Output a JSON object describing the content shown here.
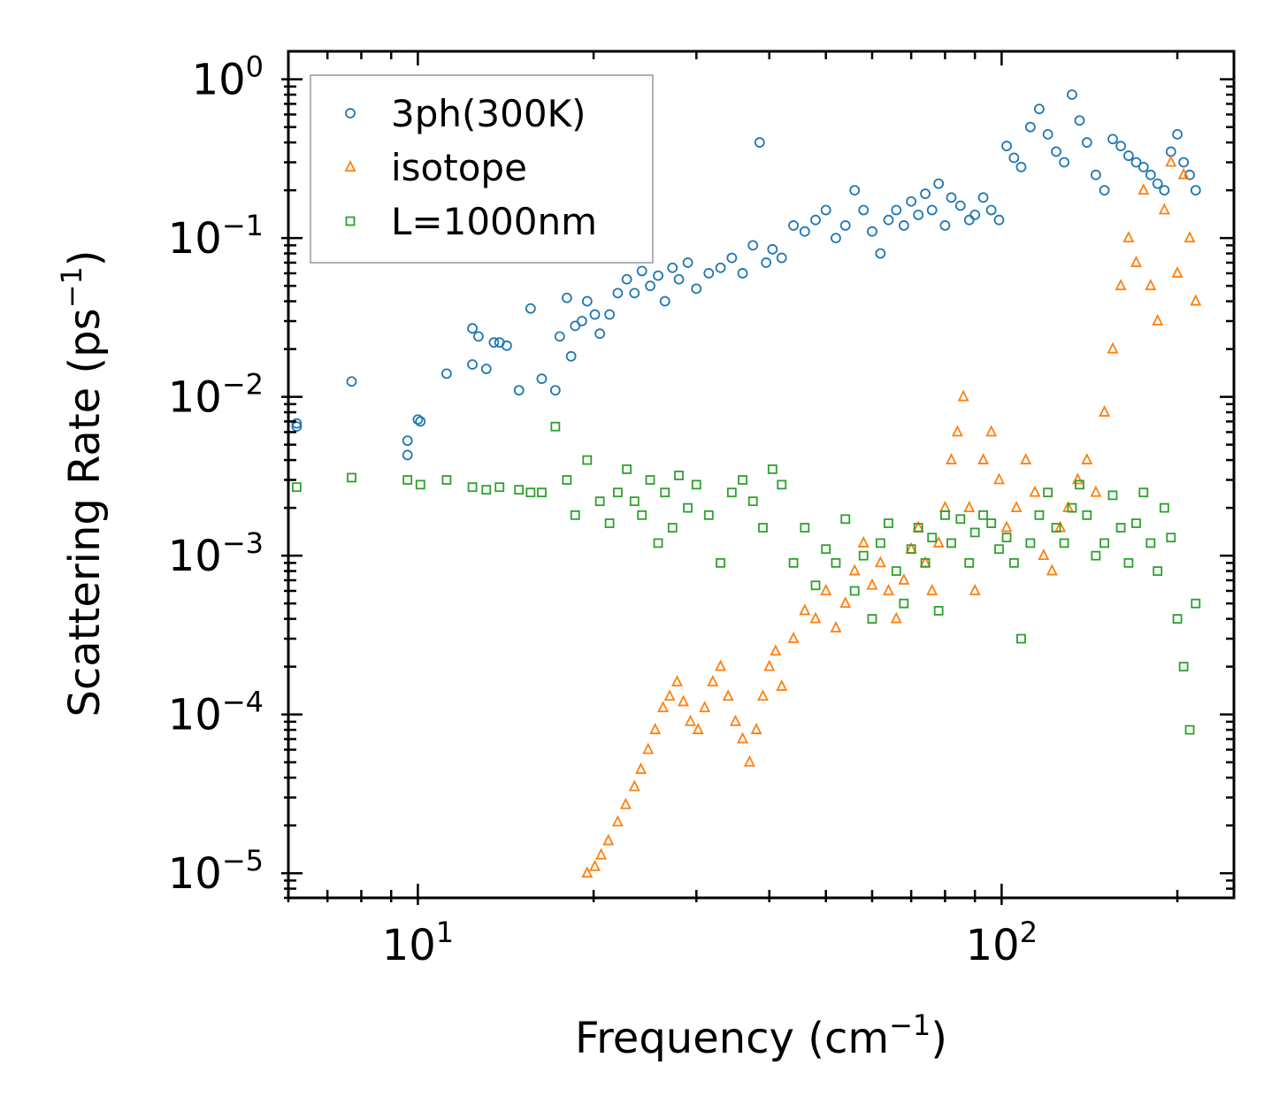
{
  "chart_data": {
    "type": "scatter",
    "xscale": "log",
    "yscale": "log",
    "xlim": [
      6,
      250
    ],
    "ylim": [
      7e-06,
      1.5
    ],
    "xlabel": {
      "text": "Frequency (cm",
      "sup": "−1",
      "close": ")"
    },
    "ylabel": {
      "text": "Scattering Rate (ps",
      "sup": "−1",
      "close": ")"
    },
    "xticks": [
      {
        "value": 10,
        "base": "10",
        "exp": "1"
      },
      {
        "value": 100,
        "base": "10",
        "exp": "2"
      }
    ],
    "yticks": [
      {
        "value": 1,
        "base": "10",
        "exp": "0"
      },
      {
        "value": 0.1,
        "base": "10",
        "exp": "−1"
      },
      {
        "value": 0.01,
        "base": "10",
        "exp": "−2"
      },
      {
        "value": 0.001,
        "base": "10",
        "exp": "−3"
      },
      {
        "value": 0.0001,
        "base": "10",
        "exp": "−4"
      },
      {
        "value": 1e-05,
        "base": "10",
        "exp": "−5"
      }
    ],
    "legend_position": "top-left",
    "series": [
      {
        "name": "3ph(300K)",
        "marker": "circle",
        "color": "#1f77b4",
        "x": [
          6.2,
          6.2,
          7.7,
          9.6,
          9.6,
          10.0,
          10.1,
          11.2,
          12.4,
          12.4,
          12.7,
          13.1,
          13.5,
          13.8,
          14.2,
          14.9,
          15.6,
          16.3,
          17.2,
          17.5,
          18.0,
          18.3,
          18.6,
          19.1,
          19.5,
          20.1,
          20.5,
          21.3,
          22.0,
          22.8,
          23.5,
          24.2,
          25.0,
          25.8,
          26.5,
          27.3,
          28.0,
          29.0,
          30.0,
          31.5,
          33.0,
          34.5,
          36.0,
          37.5,
          38.5,
          39.5,
          40.5,
          42.0,
          44.0,
          46.0,
          48.0,
          50.0,
          52.0,
          54.0,
          56.0,
          58.0,
          60.0,
          62.0,
          64.0,
          66.0,
          68.0,
          70.0,
          72.0,
          74.0,
          76.0,
          78.0,
          80.0,
          82.0,
          85.0,
          88.0,
          90.0,
          93.0,
          96.0,
          99.0,
          102.0,
          105.0,
          108.0,
          112.0,
          116.0,
          120.0,
          124.0,
          128.0,
          132.0,
          136.0,
          140.0,
          145.0,
          150.0,
          155.0,
          160.0,
          165.0,
          170.0,
          175.0,
          180.0,
          185.0,
          190.0,
          195.0,
          200.0,
          205.0,
          210.0,
          215.0
        ],
        "y": [
          0.0068,
          0.0065,
          0.0125,
          0.0043,
          0.0053,
          0.0072,
          0.007,
          0.014,
          0.027,
          0.016,
          0.024,
          0.015,
          0.022,
          0.022,
          0.021,
          0.011,
          0.036,
          0.013,
          0.011,
          0.024,
          0.042,
          0.018,
          0.028,
          0.03,
          0.04,
          0.033,
          0.025,
          0.033,
          0.045,
          0.055,
          0.045,
          0.062,
          0.05,
          0.058,
          0.04,
          0.065,
          0.055,
          0.07,
          0.048,
          0.06,
          0.065,
          0.075,
          0.06,
          0.09,
          0.4,
          0.07,
          0.085,
          0.075,
          0.12,
          0.11,
          0.13,
          0.15,
          0.1,
          0.12,
          0.2,
          0.15,
          0.11,
          0.08,
          0.13,
          0.15,
          0.12,
          0.17,
          0.14,
          0.19,
          0.15,
          0.22,
          0.12,
          0.18,
          0.16,
          0.13,
          0.14,
          0.18,
          0.15,
          0.13,
          0.38,
          0.32,
          0.28,
          0.5,
          0.65,
          0.45,
          0.35,
          0.3,
          0.8,
          0.55,
          0.4,
          0.25,
          0.2,
          0.42,
          0.38,
          0.33,
          0.3,
          0.28,
          0.25,
          0.22,
          0.2,
          0.35,
          0.45,
          0.3,
          0.25,
          0.2
        ]
      },
      {
        "name": "isotope",
        "marker": "triangle",
        "color": "#ff7f0e",
        "x": [
          19.5,
          20.1,
          20.6,
          21.2,
          22.0,
          22.7,
          23.5,
          24.1,
          24.8,
          25.5,
          26.3,
          27.0,
          27.8,
          28.5,
          29.3,
          30.2,
          31.0,
          32.0,
          33.0,
          34.0,
          35.0,
          36.0,
          37.0,
          38.0,
          39.0,
          40.0,
          41.0,
          42.0,
          44.0,
          46.0,
          48.0,
          50.0,
          52.0,
          54.0,
          56.0,
          58.0,
          60.0,
          62.0,
          64.0,
          66.0,
          68.0,
          70.0,
          72.0,
          74.0,
          76.0,
          78.0,
          80.0,
          82.0,
          84.0,
          86.0,
          88.0,
          90.0,
          93.0,
          96.0,
          99.0,
          102.0,
          106.0,
          110.0,
          114.0,
          118.0,
          122.0,
          126.0,
          130.0,
          135.0,
          140.0,
          145.0,
          150.0,
          155.0,
          160.0,
          165.0,
          170.0,
          175.0,
          180.0,
          185.0,
          190.0,
          195.0,
          200.0,
          205.0,
          210.0,
          215.0
        ],
        "y": [
          1e-05,
          1.1e-05,
          1.3e-05,
          1.6e-05,
          2.1e-05,
          2.7e-05,
          3.5e-05,
          4.5e-05,
          6e-05,
          8e-05,
          0.00011,
          0.00013,
          0.00016,
          0.00012,
          9e-05,
          8e-05,
          0.00011,
          0.00016,
          0.0002,
          0.00013,
          9e-05,
          7e-05,
          5e-05,
          8e-05,
          0.00013,
          0.0002,
          0.00025,
          0.00015,
          0.0003,
          0.00045,
          0.0004,
          0.0006,
          0.00035,
          0.0005,
          0.0008,
          0.0012,
          0.00065,
          0.0009,
          0.0006,
          0.0004,
          0.0007,
          0.0011,
          0.0015,
          0.0009,
          0.0006,
          0.0012,
          0.002,
          0.004,
          0.006,
          0.01,
          0.002,
          0.0006,
          0.004,
          0.006,
          0.003,
          0.0015,
          0.002,
          0.004,
          0.0025,
          0.001,
          0.0008,
          0.0015,
          0.002,
          0.003,
          0.004,
          0.0025,
          0.008,
          0.02,
          0.05,
          0.1,
          0.07,
          0.2,
          0.05,
          0.03,
          0.15,
          0.3,
          0.06,
          0.25,
          0.1,
          0.04
        ]
      },
      {
        "name": "L=1000nm",
        "marker": "square",
        "color": "#2ca02c",
        "x": [
          6.2,
          7.7,
          9.6,
          10.1,
          11.2,
          12.4,
          13.1,
          13.8,
          14.9,
          15.6,
          16.3,
          17.2,
          18.0,
          18.6,
          19.5,
          20.5,
          21.3,
          22.0,
          22.8,
          23.5,
          24.2,
          25.0,
          25.8,
          26.5,
          27.3,
          28.0,
          29.0,
          30.0,
          31.5,
          33.0,
          34.5,
          36.0,
          37.5,
          39.0,
          40.5,
          42.0,
          44.0,
          46.0,
          48.0,
          50.0,
          52.0,
          54.0,
          56.0,
          58.0,
          60.0,
          62.0,
          64.0,
          66.0,
          68.0,
          70.0,
          72.0,
          74.0,
          76.0,
          78.0,
          80.0,
          82.0,
          85.0,
          88.0,
          90.0,
          93.0,
          96.0,
          99.0,
          102.0,
          105.0,
          108.0,
          112.0,
          116.0,
          120.0,
          124.0,
          128.0,
          132.0,
          136.0,
          140.0,
          145.0,
          150.0,
          155.0,
          160.0,
          165.0,
          170.0,
          175.0,
          180.0,
          185.0,
          190.0,
          195.0,
          200.0,
          205.0,
          210.0,
          215.0
        ],
        "y": [
          0.0027,
          0.0031,
          0.003,
          0.0028,
          0.003,
          0.0027,
          0.0026,
          0.0027,
          0.0026,
          0.0025,
          0.0025,
          0.0065,
          0.003,
          0.0018,
          0.004,
          0.0022,
          0.0016,
          0.0025,
          0.0035,
          0.0022,
          0.0018,
          0.003,
          0.0012,
          0.0025,
          0.0015,
          0.0032,
          0.002,
          0.0028,
          0.0018,
          0.0009,
          0.0025,
          0.003,
          0.0022,
          0.0015,
          0.0035,
          0.0028,
          0.0009,
          0.0015,
          0.00065,
          0.0011,
          0.0009,
          0.0017,
          0.0006,
          0.001,
          0.0004,
          0.0012,
          0.0016,
          0.0008,
          0.0005,
          0.0011,
          0.0015,
          0.0009,
          0.0013,
          0.00045,
          0.0018,
          0.0012,
          0.0017,
          0.0009,
          0.0014,
          0.0018,
          0.0016,
          0.0011,
          0.0013,
          0.0009,
          0.0003,
          0.0012,
          0.0018,
          0.0025,
          0.0015,
          0.0012,
          0.002,
          0.0028,
          0.0018,
          0.001,
          0.0012,
          0.0024,
          0.0015,
          0.0009,
          0.0016,
          0.0025,
          0.0012,
          0.0008,
          0.002,
          0.0013,
          0.0004,
          0.0002,
          8e-05,
          0.0005
        ]
      }
    ]
  }
}
